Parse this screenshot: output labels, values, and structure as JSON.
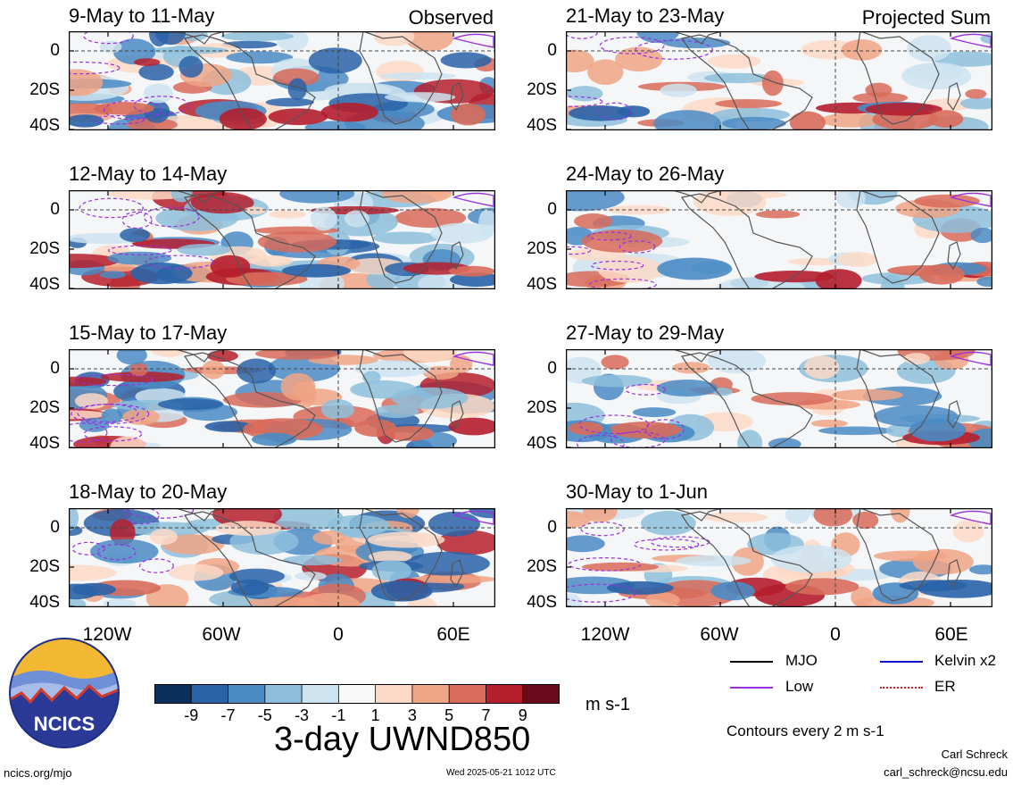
{
  "panels": {
    "left": [
      {
        "title": "9-May to 11-May"
      },
      {
        "title": "12-May to 14-May"
      },
      {
        "title": "15-May to 17-May"
      },
      {
        "title": "18-May to 20-May"
      }
    ],
    "right": [
      {
        "title": "21-May to 23-May"
      },
      {
        "title": "24-May to 26-May"
      },
      {
        "title": "27-May to 29-May"
      },
      {
        "title": "30-May to 1-Jun"
      }
    ]
  },
  "labels": {
    "observed": "Observed",
    "projected": "Projected Sum",
    "lat_ticks": [
      "0",
      "20S",
      "40S"
    ],
    "lon_ticks": [
      "120W",
      "60W",
      "0",
      "60E"
    ]
  },
  "colorbar": {
    "ticks": [
      "-9",
      "-7",
      "-5",
      "-3",
      "-1",
      "1",
      "3",
      "5",
      "7",
      "9"
    ],
    "colors": [
      "#0b2f5b",
      "#2a63a8",
      "#4a8bc4",
      "#8dbfdc",
      "#cde3f0",
      "#f8f8f8",
      "#fbd9c6",
      "#f0a585",
      "#d86b5a",
      "#b51e2d",
      "#6b0a1a"
    ],
    "units": "m s-1",
    "title": "3-day UWND850"
  },
  "legend": {
    "items": [
      {
        "label": "MJO",
        "color": "#000000"
      },
      {
        "label": "Kelvin x2",
        "color": "#1010c8"
      },
      {
        "label": "Low",
        "color": "#9a30e0"
      },
      {
        "label": "ER",
        "color": "#c8201a"
      }
    ],
    "contour_note": "Contours every 2 m s-1"
  },
  "footer": {
    "logo_text": "NCICS",
    "site": "ncics.org/mjo",
    "timestamp": "Wed 2025-05-21 1012 UTC",
    "author": "Carl Schreck",
    "email": "carl_schreck@ncsu.edu"
  }
}
